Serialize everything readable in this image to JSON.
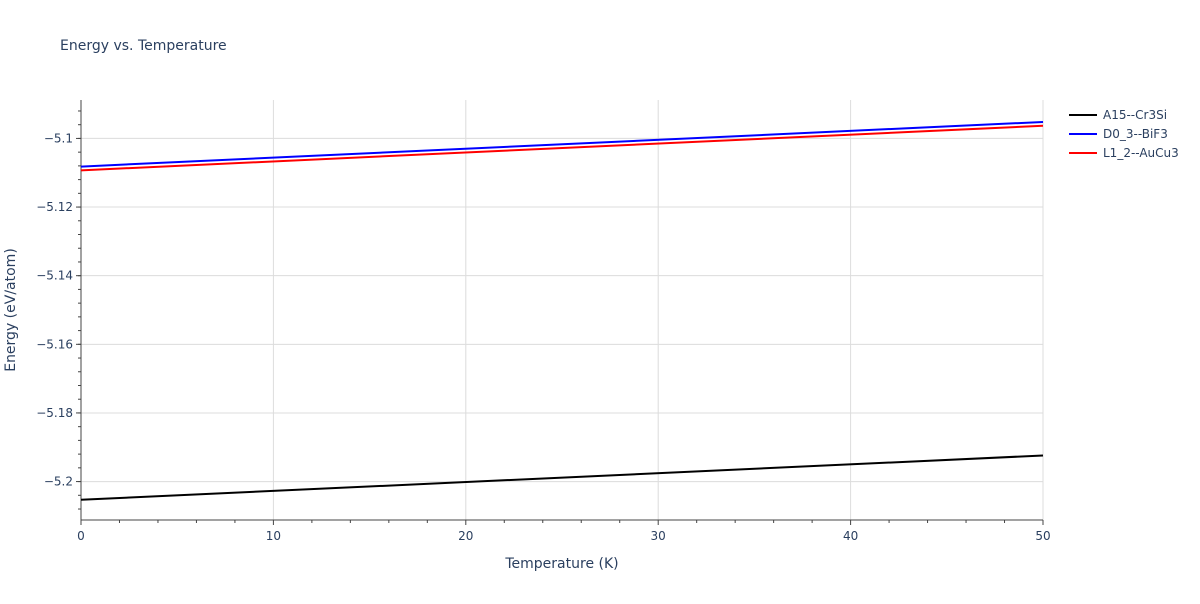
{
  "chart_data": {
    "type": "line",
    "title": "Energy vs. Temperature",
    "xlabel": "Temperature (K)",
    "ylabel": "Energy (eV/atom)",
    "xlim": [
      0,
      50
    ],
    "ylim": [
      -5.2112,
      -5.0888
    ],
    "x_ticks": [
      0,
      10,
      20,
      30,
      40,
      50
    ],
    "x_tick_labels": [
      "0",
      "10",
      "20",
      "30",
      "40",
      "50"
    ],
    "y_ticks": [
      -5.2,
      -5.18,
      -5.16,
      -5.14,
      -5.12,
      -5.1
    ],
    "y_tick_labels": [
      "−5.2",
      "−5.18",
      "−5.16",
      "−5.14",
      "−5.12",
      "−5.1"
    ],
    "grid": true,
    "legend_position": "top-right-outside",
    "series": [
      {
        "name": "A15--Cr3Si",
        "color": "#000000",
        "x": [
          0,
          50
        ],
        "y": [
          -5.2053,
          -5.1924
        ]
      },
      {
        "name": "D0_3--BiF3",
        "color": "#0000ff",
        "x": [
          0,
          50
        ],
        "y": [
          -5.1082,
          -5.0952
        ]
      },
      {
        "name": "L1_2--AuCu3",
        "color": "#ff0000",
        "x": [
          0,
          50
        ],
        "y": [
          -5.1093,
          -5.0963
        ]
      }
    ]
  }
}
